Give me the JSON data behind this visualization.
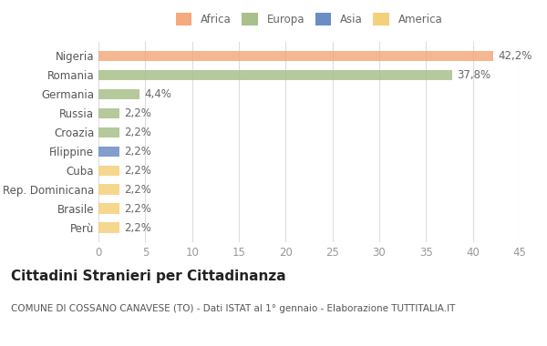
{
  "categories": [
    "Nigeria",
    "Romania",
    "Germania",
    "Russia",
    "Croazia",
    "Filippine",
    "Cuba",
    "Rep. Dominicana",
    "Brasile",
    "Perù"
  ],
  "values": [
    42.2,
    37.8,
    4.4,
    2.2,
    2.2,
    2.2,
    2.2,
    2.2,
    2.2,
    2.2
  ],
  "labels": [
    "42,2%",
    "37,8%",
    "4,4%",
    "2,2%",
    "2,2%",
    "2,2%",
    "2,2%",
    "2,2%",
    "2,2%",
    "2,2%"
  ],
  "colors": [
    "#F4A97F",
    "#A8C08A",
    "#A8C08A",
    "#A8C08A",
    "#A8C08A",
    "#6B8DC4",
    "#F5D07A",
    "#F5D07A",
    "#F5D07A",
    "#F5D07A"
  ],
  "legend_labels": [
    "Africa",
    "Europa",
    "Asia",
    "America"
  ],
  "legend_colors": [
    "#F4A97F",
    "#A8C08A",
    "#6B8DC4",
    "#F5D07A"
  ],
  "xlim": [
    0,
    45
  ],
  "xticks": [
    0,
    5,
    10,
    15,
    20,
    25,
    30,
    35,
    40,
    45
  ],
  "title": "Cittadini Stranieri per Cittadinanza",
  "subtitle": "COMUNE DI COSSANO CANAVESE (TO) - Dati ISTAT al 1° gennaio - Elaborazione TUTTITALIA.IT",
  "background_color": "#FFFFFF",
  "bar_height": 0.55,
  "label_fontsize": 8.5,
  "title_fontsize": 11,
  "subtitle_fontsize": 7.5
}
